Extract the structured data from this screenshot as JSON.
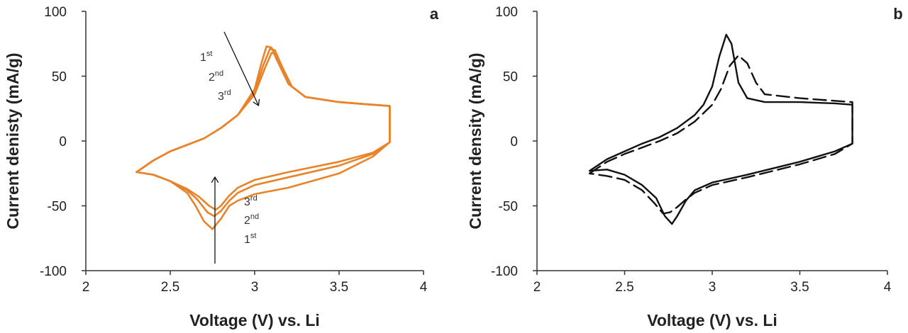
{
  "chart_data": [
    {
      "type": "line",
      "panel": "a",
      "xlabel": "Voltage (V) vs. Li",
      "ylabel": "Current denisty (mA/g)",
      "xlim": [
        2,
        4
      ],
      "ylim": [
        -100,
        100
      ],
      "xticks": [
        2,
        2.5,
        3,
        3.5,
        4
      ],
      "xtick_labels": [
        "2",
        "2.5",
        "3",
        "3.5",
        "4"
      ],
      "yticks": [
        -100,
        -50,
        0,
        50,
        100
      ],
      "ytick_labels": [
        "-100",
        "-50",
        "0",
        "50",
        "100"
      ],
      "grid": false,
      "line_color": "#e8832a",
      "annotations": [
        {
          "base": "1",
          "sup": "st"
        },
        {
          "base": "2",
          "sup": "nd"
        },
        {
          "base": "3",
          "sup": "rd"
        },
        {
          "base": "3",
          "sup": "rd"
        },
        {
          "base": "2",
          "sup": "nd"
        },
        {
          "base": "1",
          "sup": "st"
        }
      ],
      "series": [
        {
          "style": "solid",
          "x": [
            2.3,
            2.4,
            2.5,
            2.6,
            2.7,
            2.8,
            2.9,
            3.0,
            3.04,
            3.07,
            3.1,
            3.13,
            3.2,
            3.3,
            3.5,
            3.7,
            3.8,
            3.8,
            3.7,
            3.5,
            3.2,
            3.0,
            2.9,
            2.85,
            2.8,
            2.75,
            2.7,
            2.65,
            2.6,
            2.5,
            2.4,
            2.3
          ],
          "y": [
            -24,
            -15,
            -8,
            -3,
            2,
            10,
            20,
            40,
            60,
            73,
            72,
            63,
            44,
            34,
            30,
            28,
            27,
            -1,
            -12,
            -25,
            -36,
            -41,
            -46,
            -50,
            -60,
            -68,
            -62,
            -50,
            -40,
            -31,
            -26,
            -24
          ]
        },
        {
          "style": "solid",
          "x": [
            2.3,
            2.4,
            2.5,
            2.6,
            2.7,
            2.8,
            2.9,
            3.0,
            3.05,
            3.09,
            3.12,
            3.15,
            3.2,
            3.3,
            3.5,
            3.7,
            3.8,
            3.8,
            3.7,
            3.5,
            3.2,
            3.0,
            2.9,
            2.85,
            2.8,
            2.76,
            2.72,
            2.66,
            2.6,
            2.5,
            2.4,
            2.3
          ],
          "y": [
            -24,
            -15,
            -8,
            -3,
            2,
            10,
            20,
            38,
            58,
            71,
            70,
            60,
            44,
            34,
            30,
            28,
            27,
            -1,
            -10,
            -19,
            -28,
            -34,
            -40,
            -46,
            -54,
            -58,
            -55,
            -45,
            -38,
            -31,
            -26,
            -24
          ]
        },
        {
          "style": "solid",
          "x": [
            2.3,
            2.4,
            2.5,
            2.6,
            2.7,
            2.8,
            2.9,
            3.0,
            3.06,
            3.1,
            3.13,
            3.16,
            3.22,
            3.3,
            3.5,
            3.7,
            3.8,
            3.8,
            3.7,
            3.5,
            3.2,
            3.0,
            2.9,
            2.85,
            2.8,
            2.77,
            2.73,
            2.67,
            2.6,
            2.5,
            2.4,
            2.3
          ],
          "y": [
            -24,
            -15,
            -8,
            -3,
            2,
            10,
            20,
            36,
            56,
            68,
            67,
            58,
            42,
            34,
            30,
            28,
            27,
            -1,
            -9,
            -16,
            -24,
            -30,
            -36,
            -42,
            -50,
            -53,
            -50,
            -43,
            -37,
            -31,
            -26,
            -24
          ]
        }
      ]
    },
    {
      "type": "line",
      "panel": "b",
      "xlabel": "Voltage (V) vs. Li",
      "ylabel": "Current density (mA/g)",
      "xlim": [
        2,
        4
      ],
      "ylim": [
        -100,
        100
      ],
      "xticks": [
        2,
        2.5,
        3,
        3.5,
        4
      ],
      "xtick_labels": [
        "2",
        "2.5",
        "3",
        "3.5",
        "4"
      ],
      "yticks": [
        -100,
        -50,
        0,
        50,
        100
      ],
      "ytick_labels": [
        "-100",
        "-50",
        "0",
        "50",
        "100"
      ],
      "grid": false,
      "line_color": "#111111",
      "series": [
        {
          "style": "solid",
          "x": [
            2.3,
            2.4,
            2.5,
            2.6,
            2.7,
            2.8,
            2.9,
            2.95,
            3.0,
            3.04,
            3.08,
            3.11,
            3.15,
            3.2,
            3.3,
            3.5,
            3.7,
            3.8,
            3.8,
            3.7,
            3.5,
            3.2,
            3.0,
            2.9,
            2.85,
            2.8,
            2.77,
            2.73,
            2.68,
            2.6,
            2.5,
            2.4,
            2.3
          ],
          "y": [
            -23,
            -14,
            -8,
            -2,
            3,
            10,
            20,
            28,
            42,
            65,
            82,
            75,
            45,
            33,
            30,
            30,
            29,
            28,
            -2,
            -8,
            -16,
            -26,
            -32,
            -38,
            -46,
            -58,
            -64,
            -58,
            -44,
            -34,
            -26,
            -22,
            -23
          ]
        },
        {
          "style": "dashed",
          "x": [
            2.3,
            2.4,
            2.5,
            2.6,
            2.7,
            2.8,
            2.9,
            3.0,
            3.05,
            3.1,
            3.15,
            3.2,
            3.25,
            3.3,
            3.5,
            3.7,
            3.8,
            3.8,
            3.7,
            3.5,
            3.2,
            3.0,
            2.9,
            2.85,
            2.8,
            2.76,
            2.72,
            2.67,
            2.6,
            2.5,
            2.4,
            2.3
          ],
          "y": [
            -25,
            -16,
            -10,
            -5,
            0,
            6,
            15,
            28,
            40,
            58,
            66,
            60,
            45,
            36,
            33,
            31,
            30,
            -2,
            -10,
            -18,
            -28,
            -34,
            -40,
            -45,
            -51,
            -55,
            -56,
            -48,
            -38,
            -30,
            -27,
            -25
          ]
        }
      ]
    }
  ]
}
